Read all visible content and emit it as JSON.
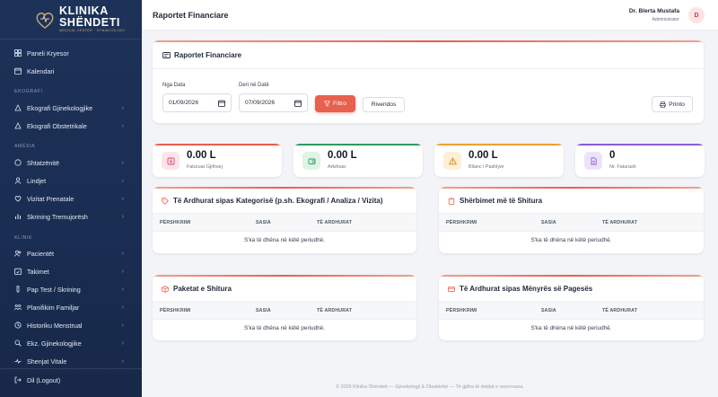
{
  "app": {
    "brand_title": "KLINIKA SHËNDETI",
    "brand_subtitle": "MEDICAL CENTER · GYNAECOLOGY"
  },
  "sidebar": {
    "items_top": [
      {
        "label": "Paneli Kryesor",
        "icon": "dashboard-icon"
      },
      {
        "label": "Kalendari",
        "icon": "calendar-icon"
      }
    ],
    "section_ekografi": "EKOGRAFI",
    "items_ekografi": [
      {
        "label": "Ekografi Gjinekologjike",
        "icon": "ultrasound-icon"
      },
      {
        "label": "Ekografi Obstetrikale",
        "icon": "ultrasound-icon"
      }
    ],
    "section_amesia": "AMËSIA",
    "items_amesia": [
      {
        "label": "Shtatzënitë",
        "icon": "pregnancy-icon"
      },
      {
        "label": "Lindjet",
        "icon": "baby-icon"
      },
      {
        "label": "Vizitat Prenatale",
        "icon": "prenatal-visit-icon"
      },
      {
        "label": "Skrining Tremujorësh",
        "icon": "chart-icon"
      }
    ],
    "section_klinik": "KLINIK",
    "items_klinik": [
      {
        "label": "Pacientët",
        "icon": "patients-icon"
      },
      {
        "label": "Takimet",
        "icon": "appointments-icon"
      },
      {
        "label": "Pap Test / Skrining",
        "icon": "test-tube-icon"
      },
      {
        "label": "Planifikim Familjar",
        "icon": "family-planning-icon"
      },
      {
        "label": "Historiku Menstrual",
        "icon": "history-icon"
      },
      {
        "label": "Ekz. Gjinekologjike",
        "icon": "exam-icon"
      },
      {
        "label": "Shenjat Vitale",
        "icon": "vitals-icon"
      }
    ],
    "logout": "Dil (Logout)"
  },
  "topbar": {
    "title": "Raportet Financiare",
    "user_name": "Dr. Blerta Mustafa",
    "user_role": "Administrator",
    "avatar_initial": "D"
  },
  "filters": {
    "card_title": "Raportet Financiare",
    "from_label": "Nga Data",
    "from_value": "01/09/2026",
    "to_label": "Deri në Datë",
    "to_value": "07/09/2026",
    "filter_button": "Filtro",
    "reset_button": "Rivendos",
    "print_button": "Printo"
  },
  "stats": [
    {
      "value": "0.00 L",
      "label": "Faturuar Gjithsej",
      "color": "#e8604e",
      "icon_bg": "#fde4ea",
      "icon_color": "#d9466b",
      "icon": "invoice-icon"
    },
    {
      "value": "0.00 L",
      "label": "Arkëtuar",
      "color": "#2e9b5f",
      "icon_bg": "#dff4e6",
      "icon_color": "#2e9b5f",
      "icon": "wallet-icon"
    },
    {
      "value": "0.00 L",
      "label": "Bilanc i Pashlyer",
      "color": "#f0a033",
      "icon_bg": "#fdf0d8",
      "icon_color": "#d98a16",
      "icon": "warning-icon"
    },
    {
      "value": "0",
      "label": "Nr. Faturash",
      "color": "#8a5cd6",
      "icon_bg": "#ece3fb",
      "icon_color": "#8a5cd6",
      "icon": "document-icon"
    }
  ],
  "tables": {
    "by_category": {
      "title": "Të Ardhurat sipas Kategorisë (p.sh. Ekografi / Analiza / Vizita)",
      "columns": [
        "PËRSHKRIMI",
        "SASIA",
        "TË ARDHURAT"
      ],
      "empty": "S'ka të dhëna në këtë periudhë."
    },
    "top_services": {
      "title": "Shërbimet më të Shitura",
      "columns": [
        "PËRSHKRIMI",
        "SASIA",
        "TË ARDHURAT"
      ],
      "empty": "S'ka të dhëna në këtë periudhë."
    },
    "packages": {
      "title": "Paketat e Shitura",
      "columns": [
        "PËRSHKRIMI",
        "SASIA",
        "TË ARDHURAT"
      ],
      "empty": "S'ka të dhëna në këtë periudhë."
    },
    "by_payment": {
      "title": "Të Ardhurat sipas Mënyrës së Pagesës",
      "columns": [
        "PËRSHKRIMI",
        "SASIA",
        "TË ARDHURAT"
      ],
      "empty": "S'ka të dhëna në këtë periudhë."
    }
  },
  "footer": "© 2026 Klinika Shëndeti — Gjinekologji & Obstetrikë — Të gjitha të drejtat e rezervuara."
}
